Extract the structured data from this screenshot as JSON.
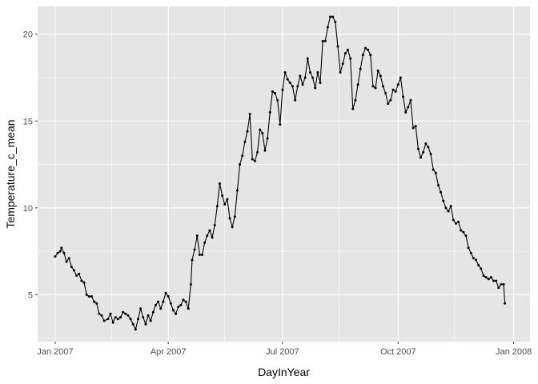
{
  "chart_data": {
    "type": "line",
    "xlabel": "DayInYear",
    "ylabel": "Temperature_c_mean",
    "xlim": [
      "2006-12-18",
      "2008-01-14"
    ],
    "ylim": [
      2.3,
      21.6
    ],
    "y_ticks": [
      5,
      10,
      15,
      20
    ],
    "x_ticks": [
      {
        "date": "2007-01-01",
        "label": "Jan 2007"
      },
      {
        "date": "2007-04-01",
        "label": "Apr 2007"
      },
      {
        "date": "2007-07-01",
        "label": "Jul 2007"
      },
      {
        "date": "2007-10-01",
        "label": "Oct 2007"
      },
      {
        "date": "2008-01-01",
        "label": "Jan 2008"
      }
    ],
    "x_minor_ticks": [
      "2007-02-15",
      "2007-05-16",
      "2007-08-15",
      "2007-11-15"
    ],
    "grid": true,
    "markers": true,
    "colors": {
      "panel": "#e5e5e5",
      "grid": "#ffffff",
      "line": "#000000"
    },
    "series": [
      {
        "points": [
          [
            "2007-01-01",
            7.2
          ],
          [
            "2007-01-03",
            7.4
          ],
          [
            "2007-01-05",
            7.5
          ],
          [
            "2007-01-06",
            7.7
          ],
          [
            "2007-01-08",
            7.4
          ],
          [
            "2007-01-10",
            6.9
          ],
          [
            "2007-01-12",
            7.1
          ],
          [
            "2007-01-14",
            6.6
          ],
          [
            "2007-01-16",
            6.4
          ],
          [
            "2007-01-18",
            6.1
          ],
          [
            "2007-01-20",
            6.2
          ],
          [
            "2007-01-22",
            5.8
          ],
          [
            "2007-01-24",
            5.7
          ],
          [
            "2007-01-26",
            5.0
          ],
          [
            "2007-01-28",
            4.9
          ],
          [
            "2007-01-30",
            4.9
          ],
          [
            "2007-02-01",
            4.6
          ],
          [
            "2007-02-03",
            4.5
          ],
          [
            "2007-02-05",
            3.9
          ],
          [
            "2007-02-07",
            3.8
          ],
          [
            "2007-02-09",
            3.5
          ],
          [
            "2007-02-12",
            3.6
          ],
          [
            "2007-02-14",
            3.9
          ],
          [
            "2007-02-16",
            3.4
          ],
          [
            "2007-02-18",
            3.7
          ],
          [
            "2007-02-20",
            3.6
          ],
          [
            "2007-02-22",
            3.7
          ],
          [
            "2007-02-24",
            4.0
          ],
          [
            "2007-02-26",
            3.9
          ],
          [
            "2007-02-28",
            3.8
          ],
          [
            "2007-03-02",
            3.6
          ],
          [
            "2007-03-04",
            3.3
          ],
          [
            "2007-03-06",
            3.0
          ],
          [
            "2007-03-08",
            3.6
          ],
          [
            "2007-03-10",
            4.2
          ],
          [
            "2007-03-12",
            3.7
          ],
          [
            "2007-03-14",
            3.3
          ],
          [
            "2007-03-16",
            3.8
          ],
          [
            "2007-03-18",
            3.5
          ],
          [
            "2007-03-20",
            4.0
          ],
          [
            "2007-03-22",
            4.4
          ],
          [
            "2007-03-24",
            4.6
          ],
          [
            "2007-03-26",
            4.2
          ],
          [
            "2007-03-28",
            4.6
          ],
          [
            "2007-03-30",
            5.1
          ],
          [
            "2007-04-01",
            4.9
          ],
          [
            "2007-04-03",
            4.5
          ],
          [
            "2007-04-05",
            4.1
          ],
          [
            "2007-04-07",
            3.9
          ],
          [
            "2007-04-09",
            4.3
          ],
          [
            "2007-04-11",
            4.4
          ],
          [
            "2007-04-13",
            4.7
          ],
          [
            "2007-04-15",
            4.6
          ],
          [
            "2007-04-17",
            4.2
          ],
          [
            "2007-04-19",
            5.6
          ],
          [
            "2007-04-20",
            7.0
          ],
          [
            "2007-04-22",
            7.6
          ],
          [
            "2007-04-24",
            8.4
          ],
          [
            "2007-04-26",
            7.3
          ],
          [
            "2007-04-28",
            7.3
          ],
          [
            "2007-04-30",
            8.0
          ],
          [
            "2007-05-02",
            8.4
          ],
          [
            "2007-05-04",
            8.7
          ],
          [
            "2007-05-06",
            8.3
          ],
          [
            "2007-05-08",
            9.0
          ],
          [
            "2007-05-10",
            10.1
          ],
          [
            "2007-05-12",
            11.4
          ],
          [
            "2007-05-14",
            10.7
          ],
          [
            "2007-05-16",
            10.2
          ],
          [
            "2007-05-18",
            10.5
          ],
          [
            "2007-05-20",
            9.4
          ],
          [
            "2007-05-22",
            8.9
          ],
          [
            "2007-05-24",
            9.5
          ],
          [
            "2007-05-26",
            11.0
          ],
          [
            "2007-05-28",
            12.5
          ],
          [
            "2007-05-30",
            13.0
          ],
          [
            "2007-06-01",
            13.8
          ],
          [
            "2007-06-03",
            14.4
          ],
          [
            "2007-06-05",
            15.4
          ],
          [
            "2007-06-07",
            12.8
          ],
          [
            "2007-06-09",
            12.7
          ],
          [
            "2007-06-11",
            13.2
          ],
          [
            "2007-06-13",
            14.5
          ],
          [
            "2007-06-15",
            14.3
          ],
          [
            "2007-06-17",
            13.3
          ],
          [
            "2007-06-19",
            14.0
          ],
          [
            "2007-06-21",
            15.5
          ],
          [
            "2007-06-23",
            16.7
          ],
          [
            "2007-06-25",
            16.6
          ],
          [
            "2007-06-27",
            16.2
          ],
          [
            "2007-06-29",
            14.8
          ],
          [
            "2007-07-01",
            16.8
          ],
          [
            "2007-07-03",
            17.8
          ],
          [
            "2007-07-05",
            17.4
          ],
          [
            "2007-07-07",
            17.2
          ],
          [
            "2007-07-09",
            17.0
          ],
          [
            "2007-07-11",
            16.2
          ],
          [
            "2007-07-13",
            17.0
          ],
          [
            "2007-07-15",
            17.6
          ],
          [
            "2007-07-17",
            17.1
          ],
          [
            "2007-07-19",
            17.5
          ],
          [
            "2007-07-21",
            18.6
          ],
          [
            "2007-07-23",
            17.8
          ],
          [
            "2007-07-25",
            17.5
          ],
          [
            "2007-07-27",
            16.9
          ],
          [
            "2007-07-29",
            17.8
          ],
          [
            "2007-07-31",
            17.2
          ],
          [
            "2007-08-02",
            19.6
          ],
          [
            "2007-08-04",
            19.6
          ],
          [
            "2007-08-06",
            20.4
          ],
          [
            "2007-08-08",
            21.0
          ],
          [
            "2007-08-10",
            21.0
          ],
          [
            "2007-08-12",
            20.7
          ],
          [
            "2007-08-14",
            19.3
          ],
          [
            "2007-08-16",
            17.8
          ],
          [
            "2007-08-18",
            18.3
          ],
          [
            "2007-08-20",
            18.9
          ],
          [
            "2007-08-22",
            19.1
          ],
          [
            "2007-08-24",
            18.6
          ],
          [
            "2007-08-26",
            15.7
          ],
          [
            "2007-08-28",
            16.2
          ],
          [
            "2007-08-30",
            17.1
          ],
          [
            "2007-09-01",
            18.0
          ],
          [
            "2007-09-03",
            18.8
          ],
          [
            "2007-09-05",
            19.2
          ],
          [
            "2007-09-07",
            19.1
          ],
          [
            "2007-09-09",
            18.8
          ],
          [
            "2007-09-11",
            17.0
          ],
          [
            "2007-09-13",
            16.9
          ],
          [
            "2007-09-15",
            17.9
          ],
          [
            "2007-09-17",
            17.6
          ],
          [
            "2007-09-19",
            17.0
          ],
          [
            "2007-09-21",
            16.6
          ],
          [
            "2007-09-23",
            16.0
          ],
          [
            "2007-09-25",
            16.2
          ],
          [
            "2007-09-27",
            16.8
          ],
          [
            "2007-09-29",
            16.7
          ],
          [
            "2007-10-01",
            17.1
          ],
          [
            "2007-10-03",
            17.5
          ],
          [
            "2007-10-05",
            16.4
          ],
          [
            "2007-10-07",
            15.5
          ],
          [
            "2007-10-09",
            15.8
          ],
          [
            "2007-10-11",
            16.2
          ],
          [
            "2007-10-13",
            14.6
          ],
          [
            "2007-10-15",
            14.7
          ],
          [
            "2007-10-17",
            13.4
          ],
          [
            "2007-10-19",
            12.9
          ],
          [
            "2007-10-21",
            13.2
          ],
          [
            "2007-10-23",
            13.7
          ],
          [
            "2007-10-25",
            13.5
          ],
          [
            "2007-10-27",
            13.1
          ],
          [
            "2007-10-29",
            12.2
          ],
          [
            "2007-10-31",
            12.0
          ],
          [
            "2007-11-02",
            11.3
          ],
          [
            "2007-11-04",
            10.9
          ],
          [
            "2007-11-06",
            10.4
          ],
          [
            "2007-11-08",
            10.0
          ],
          [
            "2007-11-10",
            9.8
          ],
          [
            "2007-11-12",
            10.1
          ],
          [
            "2007-11-14",
            9.3
          ],
          [
            "2007-11-16",
            9.1
          ],
          [
            "2007-11-18",
            9.2
          ],
          [
            "2007-11-20",
            8.7
          ],
          [
            "2007-11-22",
            8.6
          ],
          [
            "2007-11-24",
            8.4
          ],
          [
            "2007-11-26",
            7.7
          ],
          [
            "2007-11-28",
            7.4
          ],
          [
            "2007-11-30",
            7.1
          ],
          [
            "2007-12-02",
            7.0
          ],
          [
            "2007-12-04",
            6.7
          ],
          [
            "2007-12-06",
            6.5
          ],
          [
            "2007-12-08",
            6.1
          ],
          [
            "2007-12-10",
            6.0
          ],
          [
            "2007-12-12",
            5.9
          ],
          [
            "2007-12-14",
            6.0
          ],
          [
            "2007-12-16",
            5.8
          ],
          [
            "2007-12-18",
            5.8
          ],
          [
            "2007-12-20",
            5.4
          ],
          [
            "2007-12-22",
            5.6
          ],
          [
            "2007-12-24",
            5.6
          ],
          [
            "2007-12-25",
            4.5
          ]
        ]
      }
    ]
  }
}
